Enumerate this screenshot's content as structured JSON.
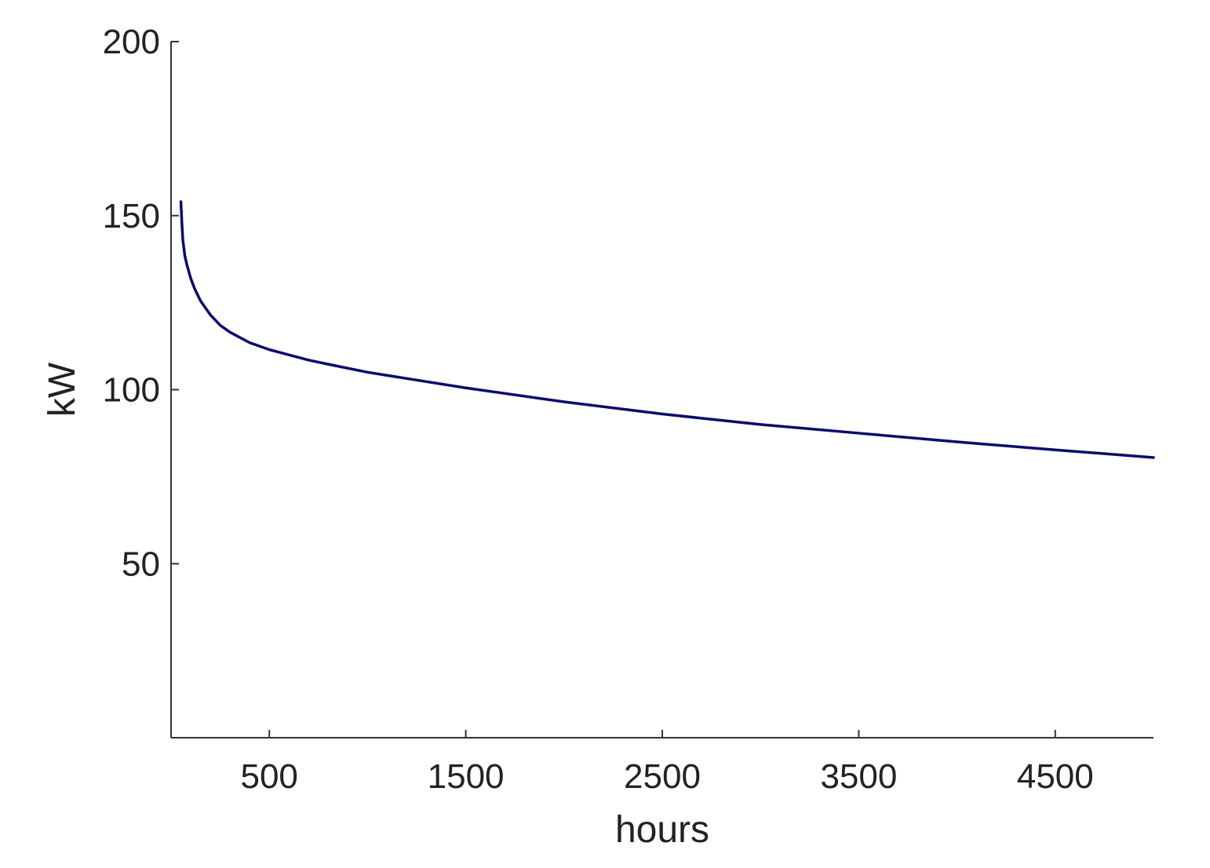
{
  "chart_data": {
    "type": "line",
    "title": "",
    "xlabel": "hours",
    "ylabel": "kW",
    "xlim": [
      0,
      5000
    ],
    "ylim": [
      0,
      200
    ],
    "xticks": [
      500,
      1500,
      2500,
      3500,
      4500
    ],
    "yticks": [
      50,
      100,
      150,
      200
    ],
    "grid": false,
    "series": [
      {
        "color": "#0a0a6e",
        "x": [
          50,
          55,
          60,
          70,
          80,
          100,
          120,
          150,
          200,
          250,
          300,
          400,
          500,
          600,
          700,
          800,
          1000,
          1200,
          1500,
          2000,
          2500,
          3000,
          3500,
          4000,
          4500,
          5000
        ],
        "y": [
          154,
          148,
          143,
          138.5,
          136,
          132,
          129,
          125.5,
          121.5,
          118.5,
          116.5,
          113.5,
          111.5,
          110,
          108.5,
          107.3,
          105,
          103.2,
          100.5,
          96.5,
          93,
          90,
          87.5,
          85,
          82.7,
          80.5
        ]
      }
    ]
  }
}
